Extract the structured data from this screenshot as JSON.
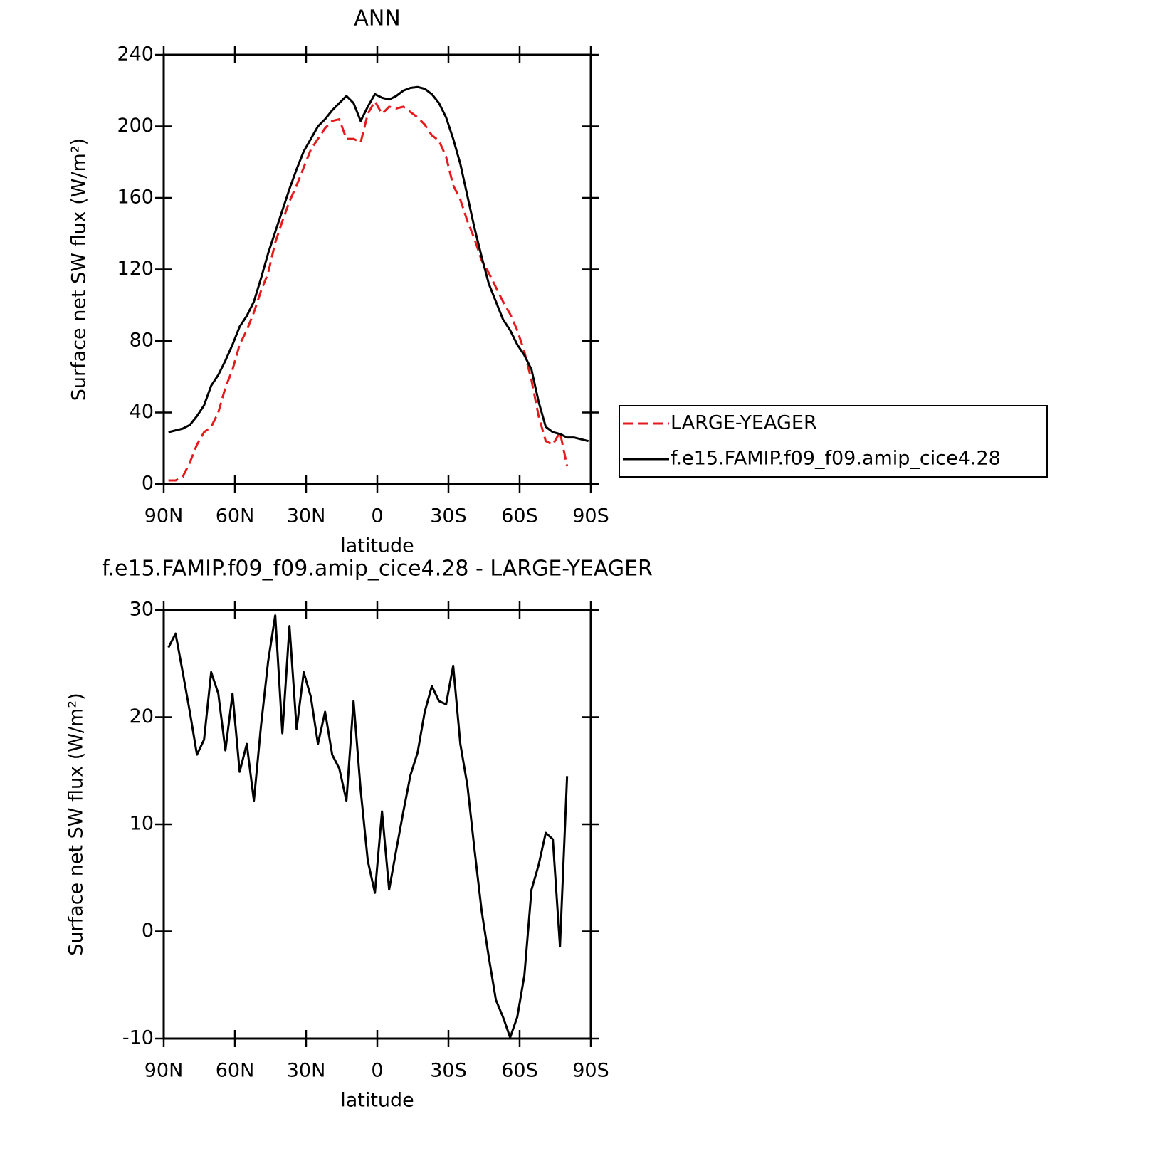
{
  "chart_data": [
    {
      "type": "line",
      "title": "ANN",
      "xlabel": "latitude",
      "ylabel": "Surface net SW flux (W/m²)",
      "x": [
        88,
        85,
        82,
        79,
        76,
        73,
        70,
        67,
        64,
        61,
        58,
        55,
        52,
        49,
        46,
        43,
        40,
        37,
        34,
        31,
        28,
        25,
        22,
        19,
        16,
        13,
        10,
        7,
        4,
        1,
        -2,
        -5,
        -8,
        -11,
        -14,
        -17,
        -20,
        -23,
        -26,
        -29,
        -32,
        -35,
        -38,
        -41,
        -44,
        -47,
        -50,
        -53,
        -56,
        -59,
        -62,
        -65,
        -68,
        -71,
        -74,
        -77,
        -80,
        -83,
        -86,
        -89
      ],
      "series": [
        {
          "name": "LARGE-YEAGER",
          "color": "#e41a1c",
          "linestyle": "dashed",
          "values": [
            2,
            2,
            4,
            12,
            22,
            29,
            32,
            40,
            54,
            64,
            78,
            86,
            96,
            108,
            118,
            135,
            147,
            158,
            167,
            177,
            187,
            193,
            199,
            203,
            204,
            193,
            193,
            191,
            207,
            214,
            207,
            211,
            210,
            211,
            208,
            205,
            201,
            195,
            192,
            183,
            167,
            159,
            147,
            137,
            125,
            118,
            110,
            102,
            95,
            86,
            74,
            58,
            38,
            24,
            22,
            29,
            10,
            null,
            null,
            null
          ]
        },
        {
          "name": "f.e15.FAMIP.f09_f09.amip_cice4.28",
          "color": "#000000",
          "linestyle": "solid",
          "values": [
            29,
            30,
            31,
            33,
            38,
            44,
            55,
            61,
            69,
            78,
            88,
            94,
            102,
            115,
            129,
            141,
            153,
            165,
            176,
            186,
            193,
            200,
            204,
            209,
            213,
            217,
            213,
            203,
            211,
            218,
            216,
            215,
            217,
            220,
            221.5,
            222,
            221,
            218,
            213,
            205,
            193,
            179,
            161,
            143,
            127,
            112,
            102,
            92,
            86,
            78,
            72,
            64,
            46,
            32,
            29,
            28,
            26,
            26,
            25,
            24
          ]
        }
      ],
      "xlim": [
        90,
        -90
      ],
      "xticks": [
        {
          "value": 90,
          "label": "90N"
        },
        {
          "value": 60,
          "label": "60N"
        },
        {
          "value": 30,
          "label": "30N"
        },
        0,
        {
          "value": -30,
          "label": "30S"
        },
        {
          "value": -60,
          "label": "60S"
        },
        {
          "value": -90,
          "label": "90S"
        }
      ],
      "ylim": [
        0,
        240
      ],
      "yticks": [
        0,
        40,
        80,
        120,
        160,
        200,
        240
      ],
      "legend": "right"
    },
    {
      "type": "line",
      "title": "f.e15.FAMIP.f09_f09.amip_cice4.28 - LARGE-YEAGER",
      "xlabel": "latitude",
      "ylabel": "Surface net SW flux (W/m²)",
      "x": [
        88,
        85,
        82,
        79,
        76,
        73,
        70,
        67,
        64,
        61,
        58,
        55,
        52,
        49,
        46,
        43,
        40,
        37,
        34,
        31,
        28,
        25,
        22,
        19,
        16,
        13,
        10,
        7,
        4,
        1,
        -2,
        -5,
        -8,
        -11,
        -14,
        -17,
        -20,
        -23,
        -26,
        -29,
        -32,
        -35,
        -38,
        -41,
        -44,
        -47,
        -50,
        -53,
        -56,
        -59,
        -62,
        -65,
        -68,
        -71,
        -74,
        -77,
        -80,
        -83,
        -86,
        -89
      ],
      "values": [
        26.5,
        27.8,
        24.2,
        20.5,
        16.5,
        17.9,
        24.2,
        22.2,
        16.9,
        22.2,
        14.9,
        17.5,
        12.2,
        19.2,
        25.2,
        29.5,
        18.5,
        28.5,
        18.9,
        24.2,
        21.9,
        17.5,
        20.5,
        16.5,
        15.2,
        12.2,
        21.5,
        13.2,
        6.6,
        3.6,
        11.2,
        3.9,
        7.6,
        11.2,
        14.6,
        16.7,
        20.5,
        22.9,
        21.5,
        21.2,
        24.8,
        17.5,
        13.6,
        7.6,
        1.9,
        -2.4,
        -6.4,
        -8.0,
        -9.9,
        -8.0,
        -4.1,
        3.9,
        6.2,
        9.2,
        8.6,
        -1.4,
        14.5,
        null,
        null,
        null
      ],
      "color": "#000000",
      "xlim": [
        90,
        -90
      ],
      "xticks": [
        {
          "value": 90,
          "label": "90N"
        },
        {
          "value": 60,
          "label": "60N"
        },
        {
          "value": 30,
          "label": "30N"
        },
        0,
        {
          "value": -30,
          "label": "30S"
        },
        {
          "value": -60,
          "label": "60S"
        },
        {
          "value": -90,
          "label": "90S"
        }
      ],
      "ylim": [
        -10,
        30
      ],
      "yticks": [
        -10,
        0,
        10,
        20,
        30
      ]
    }
  ]
}
